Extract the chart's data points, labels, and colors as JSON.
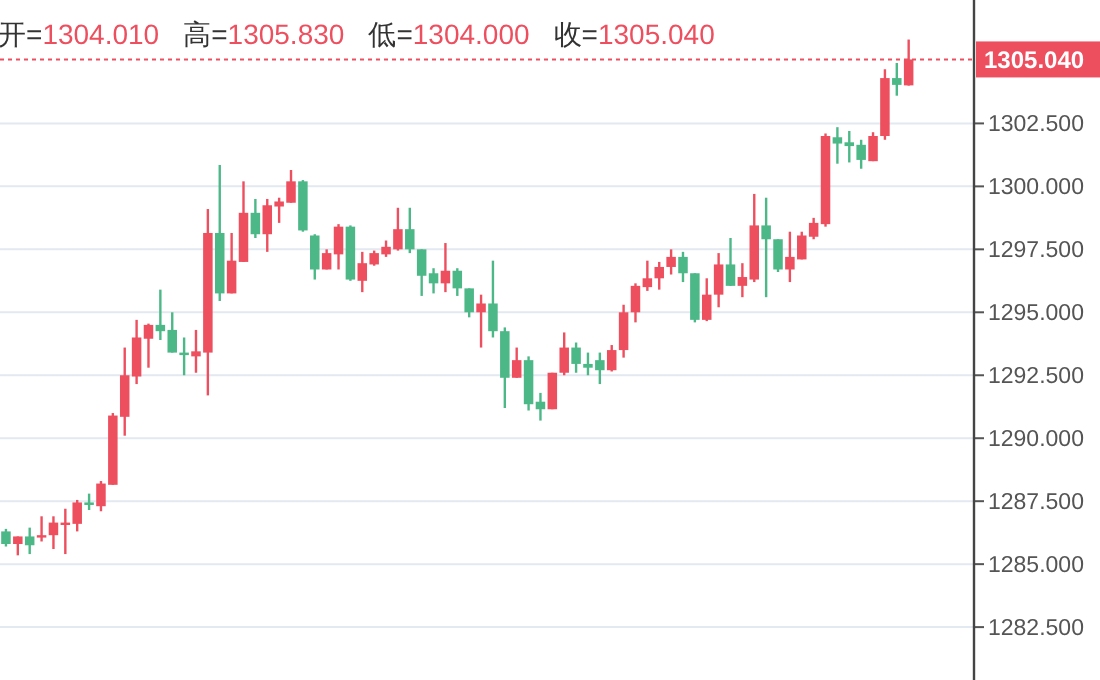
{
  "chart_data": {
    "type": "candlestick",
    "annotations": [
      "开=1304.010",
      "高=1305.830",
      "低=1304.000",
      "收=1305.040"
    ],
    "categories": [
      null,
      null,
      null,
      null,
      null,
      null,
      null,
      null,
      null,
      null,
      null,
      null,
      null,
      null,
      null,
      null,
      null,
      null,
      null,
      null,
      null,
      null,
      null,
      null,
      null,
      null,
      null,
      null,
      null,
      null,
      null,
      null,
      null,
      null,
      null,
      null,
      null,
      null,
      null,
      null,
      null,
      null,
      null,
      null,
      null,
      null,
      null,
      null,
      null,
      null,
      null,
      null,
      null,
      null,
      null,
      null,
      null,
      null,
      null,
      null,
      null,
      null,
      null,
      null,
      null,
      null,
      null,
      null,
      null,
      null,
      null,
      null,
      null,
      null,
      null,
      null,
      null,
      null,
      null,
      null,
      null,
      null
    ],
    "ohlc": [
      [
        1286.3,
        1286.4,
        1285.7,
        1285.8
      ],
      [
        1285.8,
        1286.1,
        1285.35,
        1286.1
      ],
      [
        1286.1,
        1286.45,
        1285.4,
        1285.75
      ],
      [
        1286.1,
        1286.9,
        1285.9,
        1286.15
      ],
      [
        1286.15,
        1286.9,
        1285.6,
        1286.65
      ],
      [
        1286.6,
        1287.2,
        1285.4,
        1286.65
      ],
      [
        1286.6,
        1287.55,
        1286.3,
        1287.45
      ],
      [
        1287.45,
        1287.8,
        1287.15,
        1287.35
      ],
      [
        1287.3,
        1288.3,
        1287.1,
        1288.2
      ],
      [
        1288.15,
        1291.0,
        1288.15,
        1290.9
      ],
      [
        1290.85,
        1293.6,
        1290.1,
        1292.5
      ],
      [
        1292.45,
        1294.7,
        1292.15,
        1294.0
      ],
      [
        1293.95,
        1294.55,
        1292.8,
        1294.5
      ],
      [
        1294.5,
        1295.9,
        1293.9,
        1294.25
      ],
      [
        1294.3,
        1295.0,
        1293.4,
        1293.4
      ],
      [
        1293.4,
        1294.0,
        1292.5,
        1293.3
      ],
      [
        1293.25,
        1294.3,
        1292.6,
        1293.45
      ],
      [
        1293.4,
        1299.1,
        1291.7,
        1298.15
      ],
      [
        1298.15,
        1300.85,
        1295.45,
        1295.75
      ],
      [
        1295.75,
        1298.15,
        1295.75,
        1297.05
      ],
      [
        1297.0,
        1300.2,
        1297.0,
        1298.95
      ],
      [
        1298.95,
        1299.5,
        1297.95,
        1298.1
      ],
      [
        1298.1,
        1299.5,
        1297.4,
        1299.25
      ],
      [
        1299.2,
        1299.55,
        1298.55,
        1299.4
      ],
      [
        1299.35,
        1300.65,
        1299.35,
        1300.2
      ],
      [
        1300.2,
        1300.25,
        1298.2,
        1298.25
      ],
      [
        1298.05,
        1298.1,
        1296.3,
        1296.7
      ],
      [
        1296.7,
        1297.5,
        1296.7,
        1297.35
      ],
      [
        1297.3,
        1298.5,
        1296.7,
        1298.4
      ],
      [
        1298.4,
        1298.45,
        1296.25,
        1296.3
      ],
      [
        1296.25,
        1297.4,
        1295.8,
        1296.95
      ],
      [
        1296.9,
        1297.45,
        1296.85,
        1297.35
      ],
      [
        1297.3,
        1297.85,
        1297.2,
        1297.6
      ],
      [
        1297.5,
        1299.15,
        1297.45,
        1298.3
      ],
      [
        1298.3,
        1299.15,
        1297.35,
        1297.5
      ],
      [
        1297.5,
        1297.5,
        1295.65,
        1296.45
      ],
      [
        1296.55,
        1296.75,
        1295.75,
        1296.15
      ],
      [
        1296.15,
        1297.75,
        1295.8,
        1296.65
      ],
      [
        1296.65,
        1296.75,
        1295.65,
        1295.95
      ],
      [
        1295.95,
        1295.95,
        1294.8,
        1295.0
      ],
      [
        1295.0,
        1295.7,
        1293.6,
        1295.35
      ],
      [
        1295.35,
        1297.05,
        1294.0,
        1294.25
      ],
      [
        1294.25,
        1294.4,
        1291.2,
        1292.4
      ],
      [
        1292.4,
        1293.6,
        1292.4,
        1293.1
      ],
      [
        1293.1,
        1293.25,
        1291.1,
        1291.35
      ],
      [
        1291.45,
        1291.8,
        1290.7,
        1291.15
      ],
      [
        1291.15,
        1292.6,
        1291.15,
        1292.6
      ],
      [
        1292.6,
        1294.2,
        1292.5,
        1293.6
      ],
      [
        1293.6,
        1293.8,
        1292.6,
        1292.95
      ],
      [
        1292.95,
        1293.4,
        1292.5,
        1292.8
      ],
      [
        1293.1,
        1293.4,
        1292.15,
        1292.7
      ],
      [
        1292.7,
        1293.7,
        1292.65,
        1293.5
      ],
      [
        1293.5,
        1295.3,
        1293.2,
        1295.0
      ],
      [
        1295.0,
        1296.15,
        1294.6,
        1296.05
      ],
      [
        1296.0,
        1297.05,
        1295.85,
        1296.35
      ],
      [
        1296.35,
        1297.0,
        1295.9,
        1296.8
      ],
      [
        1296.8,
        1297.5,
        1296.5,
        1297.2
      ],
      [
        1297.2,
        1297.4,
        1296.2,
        1296.55
      ],
      [
        1296.55,
        1296.55,
        1294.6,
        1294.7
      ],
      [
        1294.7,
        1296.35,
        1294.65,
        1295.7
      ],
      [
        1295.7,
        1297.35,
        1295.2,
        1296.9
      ],
      [
        1296.9,
        1297.95,
        1296.05,
        1296.05
      ],
      [
        1296.05,
        1296.95,
        1295.6,
        1296.4
      ],
      [
        1296.3,
        1299.7,
        1296.2,
        1298.45
      ],
      [
        1298.45,
        1299.55,
        1295.6,
        1297.9
      ],
      [
        1297.9,
        1297.9,
        1296.6,
        1296.7
      ],
      [
        1296.7,
        1298.2,
        1296.2,
        1297.2
      ],
      [
        1297.1,
        1298.2,
        1297.1,
        1298.05
      ],
      [
        1298.0,
        1298.75,
        1297.9,
        1298.55
      ],
      [
        1298.5,
        1302.1,
        1298.4,
        1302.0
      ],
      [
        1301.95,
        1302.35,
        1300.9,
        1301.7
      ],
      [
        1301.75,
        1302.2,
        1300.95,
        1301.6
      ],
      [
        1301.65,
        1301.85,
        1300.7,
        1301.05
      ],
      [
        1301.0,
        1302.15,
        1301.0,
        1302.0
      ],
      [
        1302.0,
        1304.65,
        1301.85,
        1304.3
      ],
      [
        1304.3,
        1304.9,
        1303.6,
        1304.03
      ],
      [
        1304.01,
        1305.83,
        1304.0,
        1305.04
      ],
      null,
      null,
      null,
      null,
      null
    ],
    "colors": [
      "#4db887",
      "#ee4f5f",
      "#4db887",
      "#ee4f5f",
      "#ee4f5f",
      "#ee4f5f",
      "#ee4f5f",
      "#4db887",
      "#ee4f5f",
      "#ee4f5f",
      "#ee4f5f",
      "#ee4f5f",
      "#ee4f5f",
      "#4db887",
      "#4db887",
      "#4db887",
      "#ee4f5f",
      "#ee4f5f",
      "#4db887",
      "#ee4f5f",
      "#ee4f5f",
      "#4db887",
      "#ee4f5f",
      "#ee4f5f",
      "#ee4f5f",
      "#4db887",
      "#4db887",
      "#ee4f5f",
      "#ee4f5f",
      "#4db887",
      "#ee4f5f",
      "#ee4f5f",
      "#ee4f5f",
      "#ee4f5f",
      "#4db887",
      "#4db887",
      "#4db887",
      "#ee4f5f",
      "#4db887",
      "#4db887",
      "#ee4f5f",
      "#4db887",
      "#4db887",
      "#ee4f5f",
      "#4db887",
      "#4db887",
      "#ee4f5f",
      "#ee4f5f",
      "#4db887",
      "#4db887",
      "#4db887",
      "#ee4f5f",
      "#ee4f5f",
      "#ee4f5f",
      "#ee4f5f",
      "#ee4f5f",
      "#ee4f5f",
      "#4db887",
      "#4db887",
      "#ee4f5f",
      "#ee4f5f",
      "#4db887",
      "#ee4f5f",
      "#ee4f5f",
      "#4db887",
      "#4db887",
      "#ee4f5f",
      "#ee4f5f",
      "#ee4f5f",
      "#ee4f5f",
      "#4db887",
      "#4db887",
      "#4db887",
      "#ee4f5f",
      "#ee4f5f",
      "#4db887",
      "#ee4f5f",
      null,
      null,
      null,
      null,
      null
    ],
    "ylim": [
      1280.4,
      1307.4
    ],
    "yticks": [
      {
        "value": 1282.5,
        "label": "1282.500"
      },
      {
        "value": 1285,
        "label": "1285.000"
      },
      {
        "value": 1287.5,
        "label": "1287.500"
      },
      {
        "value": 1290,
        "label": "1290.000"
      },
      {
        "value": 1292.5,
        "label": "1292.500"
      },
      {
        "value": 1295,
        "label": "1295.000"
      },
      {
        "value": 1297.5,
        "label": "1297.500"
      },
      {
        "value": 1300,
        "label": "1300.000"
      },
      {
        "value": 1302.5,
        "label": "1302.500"
      }
    ],
    "ref_lines": [
      {
        "axis": "y",
        "value": 1305.04,
        "label": "1305.040",
        "color": "#ee4f5f",
        "line_style": "dotted"
      }
    ],
    "grid": "y",
    "tick_labels": "y"
  }
}
